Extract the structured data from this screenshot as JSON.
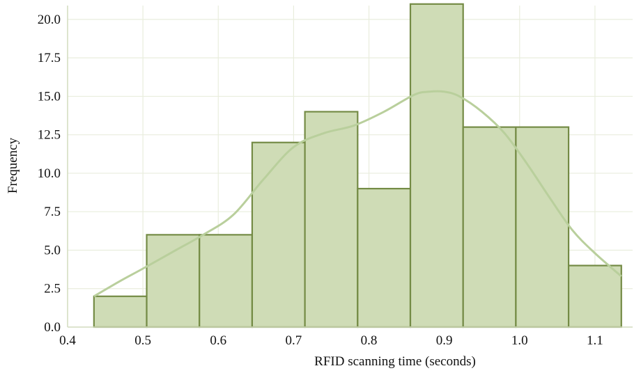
{
  "chart_data": {
    "type": "bar",
    "xlabel": "RFID scanning time (seconds)",
    "ylabel": "Frequency",
    "xlim": [
      0.4,
      1.15
    ],
    "ylim": [
      0,
      20.9
    ],
    "grid": true,
    "x_ticks": [
      "0.4",
      "0.5",
      "0.6",
      "0.7",
      "0.8",
      "0.9",
      "1.0",
      "1.1"
    ],
    "y_ticks": [
      "0.0",
      "2.5",
      "5.0",
      "7.5",
      "10.0",
      "12.5",
      "15.0",
      "17.5",
      "20.0"
    ],
    "bins": [
      {
        "start": 0.435,
        "end": 0.505,
        "count": 2
      },
      {
        "start": 0.505,
        "end": 0.575,
        "count": 6
      },
      {
        "start": 0.575,
        "end": 0.645,
        "count": 6
      },
      {
        "start": 0.645,
        "end": 0.715,
        "count": 12
      },
      {
        "start": 0.715,
        "end": 0.785,
        "count": 14
      },
      {
        "start": 0.785,
        "end": 0.855,
        "count": 9
      },
      {
        "start": 0.855,
        "end": 0.925,
        "count": 21
      },
      {
        "start": 0.925,
        "end": 0.995,
        "count": 13
      },
      {
        "start": 0.995,
        "end": 1.065,
        "count": 13
      },
      {
        "start": 1.065,
        "end": 1.135,
        "count": 4
      }
    ],
    "kde": {
      "x": [
        0.435,
        0.47,
        0.5,
        0.54,
        0.58,
        0.62,
        0.66,
        0.7,
        0.74,
        0.78,
        0.82,
        0.86,
        0.88,
        0.9,
        0.92,
        0.95,
        0.98,
        1.01,
        1.04,
        1.07,
        1.1,
        1.135
      ],
      "y": [
        2.0,
        3.0,
        3.8,
        4.9,
        6.0,
        7.3,
        9.6,
        11.7,
        12.6,
        13.1,
        14.0,
        15.1,
        15.3,
        15.3,
        15.0,
        14.0,
        12.6,
        10.6,
        8.4,
        6.3,
        4.8,
        3.3
      ]
    },
    "colors": {
      "bar_fill": "#cfdcb6",
      "bar_edge": "#748b45",
      "kde_line": "#b9cf9c",
      "grid": "#e9eddd",
      "axis": "#d3dcc0"
    }
  }
}
